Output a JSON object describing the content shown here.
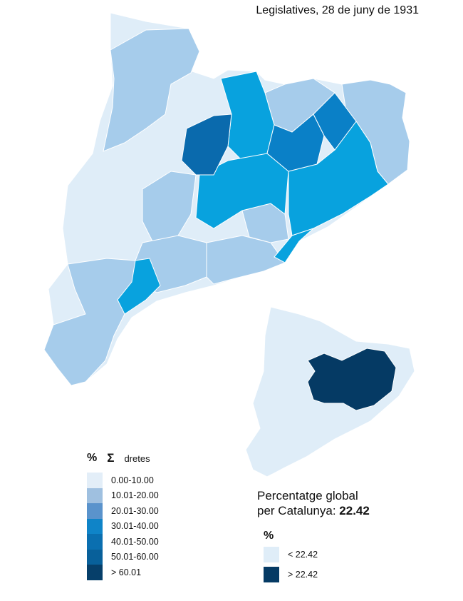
{
  "title": "Legislatives, 28 de juny de 1931",
  "legend": {
    "percent_symbol": "%",
    "sigma_symbol": "Σ",
    "label": "dretes",
    "classes": [
      {
        "range": "0.00-10.00",
        "color": "#e3eef8"
      },
      {
        "range": "10.01-20.00",
        "color": "#9fc0e0"
      },
      {
        "range": "20.01-30.00",
        "color": "#5a93cc"
      },
      {
        "range": "30.01-40.00",
        "color": "#0f84c8"
      },
      {
        "range": "40.01-50.00",
        "color": "#0a6fb0"
      },
      {
        "range": "50.01-60.00",
        "color": "#08609a"
      },
      {
        "range": "> 60.01",
        "color": "#063f6a"
      }
    ]
  },
  "global": {
    "line1": "Percentatge global",
    "line2_prefix": "per Catalunya: ",
    "value": "22.42"
  },
  "legend2": {
    "percent_symbol": "%",
    "items": [
      {
        "label": "< 22.42",
        "color": "#dfedf8"
      },
      {
        "label": "> 22.42",
        "color": "#053a64"
      }
    ]
  },
  "map_colors": {
    "very_light": "#dfedf8",
    "light": "#a6cceb",
    "medium": "#08a2de",
    "dark": "#0a80c7",
    "darkest": "#0a6aad",
    "inset_dark": "#053a64"
  }
}
